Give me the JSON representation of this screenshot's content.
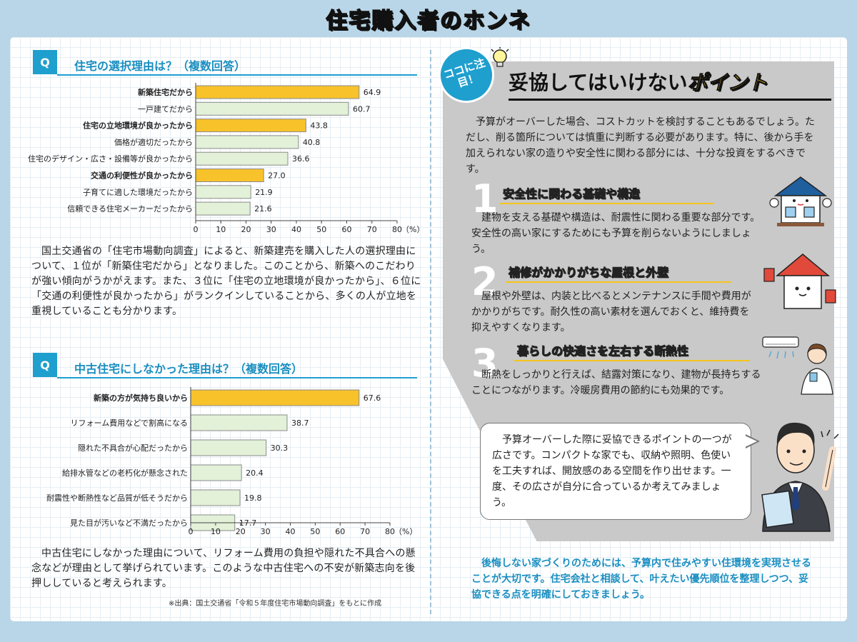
{
  "title": "住宅購入者のホンネ",
  "q1": {
    "badge": "Q",
    "title": "住宅の選択理由は？（複数回答）",
    "paragraph": "国土交通省の「住宅市場動向調査」によると、新築建売を購入した人の選択理由について、１位が「新築住宅だから」となりました。このことから、新築へのこだわりが強い傾向がうかがえます。また、３位に「住宅の立地環境が良かったから」、６位に「交通の利便性が良かったから」がランクインしていることから、多くの人が立地を重視していることも分かります。"
  },
  "q2": {
    "badge": "Q",
    "title": "中古住宅にしなかった理由は？（複数回答）",
    "paragraph": "中古住宅にしなかった理由について、リフォーム費用の負担や隠れた不具合への懸念などが理由として挙げられています。このような中古住宅への不安が新築志向を後押ししていると考えられます。",
    "source": "※出典：国土交通省「令和５年度住宅市場動向調査」をもとに作成"
  },
  "chart_data": [
    {
      "type": "bar",
      "orientation": "horizontal",
      "categories": [
        "新築住宅だから",
        "一戸建てだから",
        "住宅の立地環境が良かったから",
        "価格が適切だったから",
        "住宅のデザイン・広さ・設備等が良かったから",
        "交通の利便性が良かったから",
        "子育てに適した環境だったから",
        "信頼できる住宅メーカーだったから"
      ],
      "values": [
        64.9,
        60.7,
        43.8,
        40.8,
        36.6,
        27.0,
        21.9,
        21.6
      ],
      "value_labels": [
        "64.9",
        "60.7",
        "43.8",
        "40.8",
        "36.6",
        "27.0",
        "21.9",
        "21.6"
      ],
      "highlight": [
        true,
        false,
        true,
        false,
        false,
        true,
        false,
        false
      ],
      "xlim": [
        0,
        80
      ],
      "ticks": [
        "0",
        "10",
        "20",
        "30",
        "40",
        "50",
        "60",
        "70",
        "80"
      ],
      "unit": "（%）",
      "colors": {
        "highlight": "#f8c22b",
        "normal": "#e2f1d8",
        "border": "#8a8a8a"
      }
    },
    {
      "type": "bar",
      "orientation": "horizontal",
      "categories": [
        "新築の方が気持ち良いから",
        "リフォーム費用などで割高になる",
        "隠れた不具合が心配だったから",
        "給排水管などの老朽化が懸念された",
        "耐震性や断熱性など品質が低そうだから",
        "見た目が汚いなど不満だったから"
      ],
      "values": [
        67.6,
        38.7,
        30.3,
        20.4,
        19.8,
        17.7
      ],
      "value_labels": [
        "67.6",
        "38.7",
        "30.3",
        "20.4",
        "19.8",
        "17.7"
      ],
      "highlight": [
        true,
        false,
        false,
        false,
        false,
        false
      ],
      "xlim": [
        0,
        80
      ],
      "ticks": [
        "0",
        "10",
        "20",
        "30",
        "40",
        "50",
        "60",
        "70",
        "80"
      ],
      "unit": "（%）",
      "colors": {
        "highlight": "#f8c22b",
        "normal": "#e2f1d8",
        "border": "#8a8a8a"
      }
    }
  ],
  "right": {
    "badge": "ココに注目！",
    "headline_main": "妥協してはいけない",
    "headline_accent": "ポイント",
    "intro": "予算がオーバーした場合、コストカットを検討することもあるでしょう。ただし、削る箇所については慎重に判断する必要があります。特に、後から手を加えられない家の造りや安全性に関わる部分には、十分な投資をするべきです。",
    "points": [
      {
        "num": "1",
        "title": "安全性に関わる基礎や構造",
        "text": "建物を支える基礎や構造は、耐震性に関わる重要な部分です。安全性の高い家にするためにも予算を削らないようにしましょう。"
      },
      {
        "num": "2",
        "title": "補修がかかりがちな屋根と外壁",
        "text": "屋根や外壁は、内装と比べるとメンテナンスに手間や費用がかかりがちです。耐久性の高い素材を選んでおくと、維持費を抑えやすくなります。"
      },
      {
        "num": "3",
        "title": "暮らしの快適さを左右する断熱性",
        "text": "断熱をしっかりと行えば、結露対策になり、建物が長持ちすることにつながります。冷暖房費用の節約にも効果的です。"
      }
    ],
    "bubble": "予算オーバーした際に妥協できるポイントの一つが広さです。コンパクトな家でも、収納や照明、色使いを工夫すれば、開放感のある空間を作り出せます。一度、その広さが自分に合っているか考えてみましょう。",
    "closing": "後悔しない家づくりのためには、予算内で住みやすい住環境を実現させることが大切です。住宅会社と相談して、叶えたい優先順位を整理しつつ、妥協できる点を明確にしておきましょう。"
  },
  "icons": [
    "lightbulb-icon",
    "house-mascot-icon",
    "roof-mascot-icon",
    "air-conditioner-icon",
    "woman-icon",
    "businessman-icon"
  ]
}
